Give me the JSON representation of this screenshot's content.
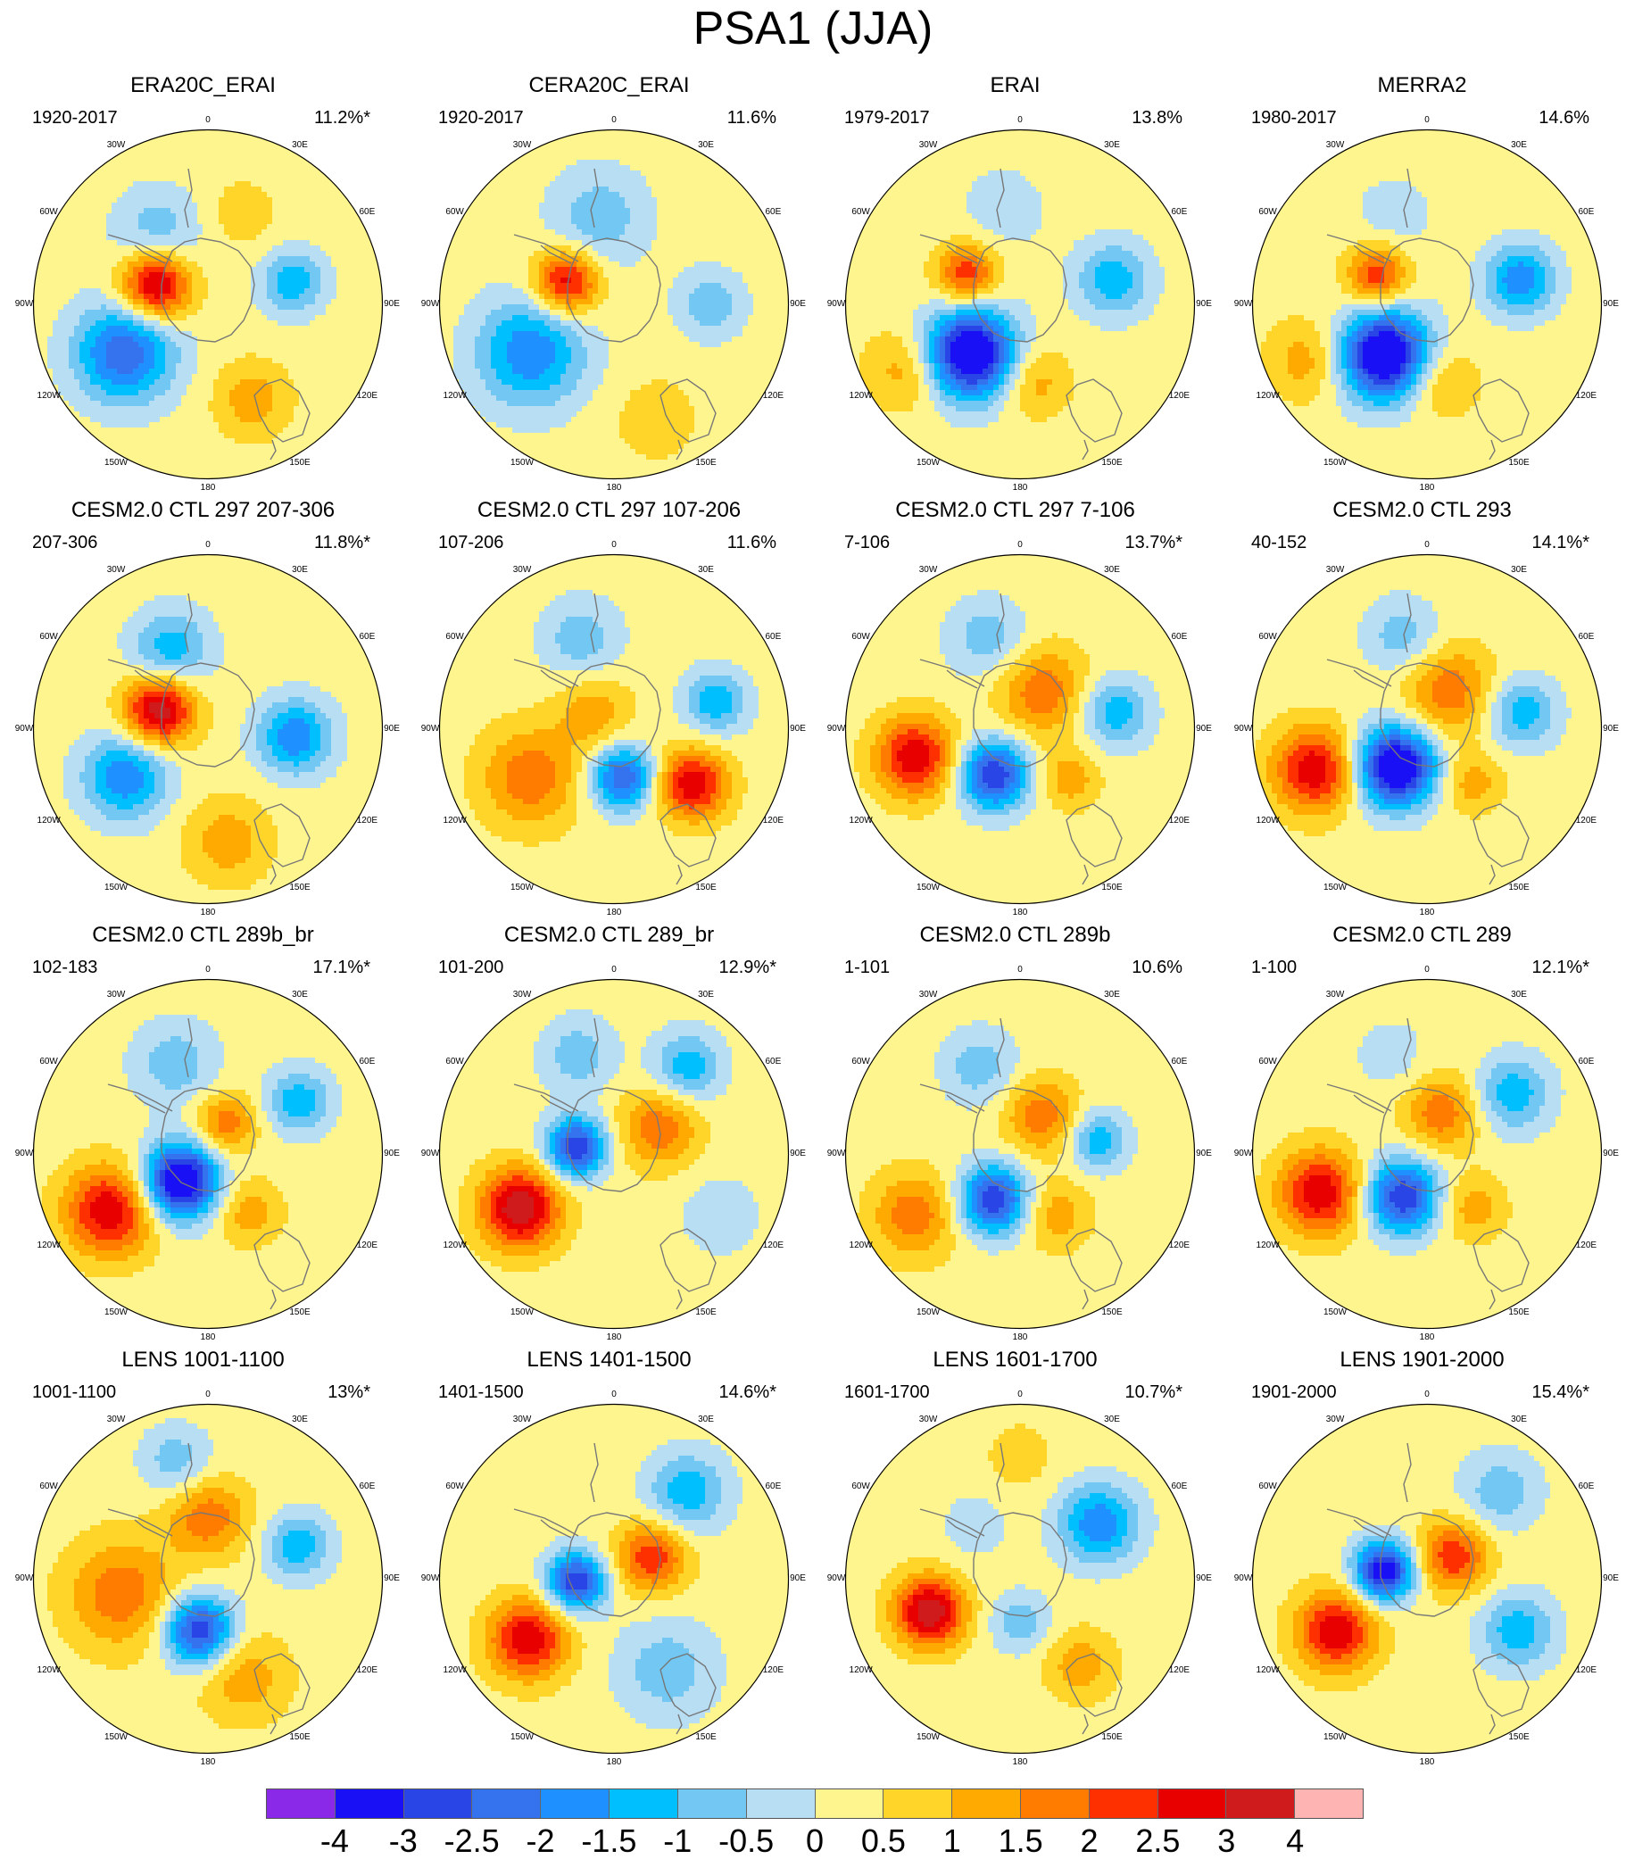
{
  "title": "PSA1 (JJA)",
  "chart_data": {
    "type": "heatmap",
    "projection": "south-polar-stereographic",
    "layout": "4x4 grid",
    "longitude_labels": [
      "0",
      "30E",
      "60E",
      "90E",
      "120E",
      "150E",
      "180",
      "150W",
      "120W",
      "90W",
      "60W",
      "30W"
    ],
    "panels": [
      {
        "title": "ERA20C_ERAI",
        "period": "1920-2017",
        "variance": "11.2%*",
        "features": [
          {
            "lon": -70,
            "r": 0.32,
            "value": 3.0,
            "spread": 0.14
          },
          {
            "lon": -120,
            "r": 0.55,
            "value": -2.5,
            "spread": 0.2
          },
          {
            "lon": -35,
            "r": 0.5,
            "value": -1.0,
            "spread": 0.18
          },
          {
            "lon": 75,
            "r": 0.5,
            "value": -1.5,
            "spread": 0.13
          },
          {
            "lon": 155,
            "r": 0.6,
            "value": 1.0,
            "spread": 0.15
          },
          {
            "lon": 20,
            "r": 0.55,
            "value": 0.5,
            "spread": 0.15
          }
        ]
      },
      {
        "title": "CERA20C_ERAI",
        "period": "1920-2017",
        "variance": "11.6%",
        "features": [
          {
            "lon": -65,
            "r": 0.3,
            "value": 2.5,
            "spread": 0.13
          },
          {
            "lon": -120,
            "r": 0.55,
            "value": -2.0,
            "spread": 0.22
          },
          {
            "lon": -10,
            "r": 0.5,
            "value": -1.0,
            "spread": 0.2
          },
          {
            "lon": 90,
            "r": 0.55,
            "value": -1.0,
            "spread": 0.14
          },
          {
            "lon": 160,
            "r": 0.7,
            "value": 0.5,
            "spread": 0.18
          }
        ]
      },
      {
        "title": "ERAI",
        "period": "1979-2017",
        "variance": "13.8%",
        "features": [
          {
            "lon": -60,
            "r": 0.35,
            "value": 2.0,
            "spread": 0.12
          },
          {
            "lon": -135,
            "r": 0.4,
            "value": -4.0,
            "spread": 0.18
          },
          {
            "lon": 75,
            "r": 0.55,
            "value": -1.5,
            "spread": 0.15
          },
          {
            "lon": -120,
            "r": 0.75,
            "value": 1.0,
            "spread": 0.16
          },
          {
            "lon": 170,
            "r": 0.45,
            "value": 1.0,
            "spread": 0.14
          },
          {
            "lon": -10,
            "r": 0.55,
            "value": -0.5,
            "spread": 0.18
          }
        ]
      },
      {
        "title": "MERRA2",
        "period": "1980-2017",
        "variance": "14.6%",
        "features": [
          {
            "lon": -60,
            "r": 0.33,
            "value": 2.0,
            "spread": 0.12
          },
          {
            "lon": -140,
            "r": 0.38,
            "value": -4.0,
            "spread": 0.18
          },
          {
            "lon": 75,
            "r": 0.55,
            "value": -2.0,
            "spread": 0.14
          },
          {
            "lon": -115,
            "r": 0.75,
            "value": 1.0,
            "spread": 0.16
          },
          {
            "lon": 170,
            "r": 0.45,
            "value": 1.0,
            "spread": 0.14
          },
          {
            "lon": -20,
            "r": 0.55,
            "value": -0.5,
            "spread": 0.16
          }
        ]
      },
      {
        "title": "CESM2.0 CTL 297 207-306",
        "period": "207-306",
        "variance": "11.8%*",
        "features": [
          {
            "lon": -68,
            "r": 0.3,
            "value": 3.0,
            "spread": 0.14
          },
          {
            "lon": -120,
            "r": 0.55,
            "value": -2.0,
            "spread": 0.17
          },
          {
            "lon": -25,
            "r": 0.5,
            "value": -1.5,
            "spread": 0.16
          },
          {
            "lon": 95,
            "r": 0.5,
            "value": -2.0,
            "spread": 0.15
          },
          {
            "lon": 170,
            "r": 0.65,
            "value": 1.0,
            "spread": 0.17
          }
        ]
      },
      {
        "title": "CESM2.0 CTL 297 107-206",
        "period": "107-206",
        "variance": "11.6%",
        "features": [
          {
            "lon": 170,
            "r": 0.28,
            "value": -2.5,
            "spread": 0.13
          },
          {
            "lon": 125,
            "r": 0.55,
            "value": 2.5,
            "spread": 0.14
          },
          {
            "lon": -120,
            "r": 0.55,
            "value": 1.5,
            "spread": 0.2
          },
          {
            "lon": -20,
            "r": 0.55,
            "value": -1.0,
            "spread": 0.16
          },
          {
            "lon": 75,
            "r": 0.6,
            "value": -1.5,
            "spread": 0.13
          },
          {
            "lon": -50,
            "r": 0.15,
            "value": 1.0,
            "spread": 0.15
          }
        ]
      },
      {
        "title": "CESM2.0 CTL 297 7-106",
        "period": "7-106",
        "variance": "13.7%*",
        "features": [
          {
            "lon": -150,
            "r": 0.3,
            "value": -3.0,
            "spread": 0.14
          },
          {
            "lon": -105,
            "r": 0.62,
            "value": 2.5,
            "spread": 0.16
          },
          {
            "lon": 30,
            "r": 0.25,
            "value": 1.5,
            "spread": 0.18
          },
          {
            "lon": 80,
            "r": 0.55,
            "value": -1.5,
            "spread": 0.14
          },
          {
            "lon": -20,
            "r": 0.55,
            "value": -1.0,
            "spread": 0.16
          },
          {
            "lon": 135,
            "r": 0.4,
            "value": 1.0,
            "spread": 0.12
          }
        ]
      },
      {
        "title": "CESM2.0 CTL 293",
        "period": "40-152",
        "variance": "14.1%*",
        "features": [
          {
            "lon": -140,
            "r": 0.28,
            "value": -4.0,
            "spread": 0.16
          },
          {
            "lon": -110,
            "r": 0.68,
            "value": 2.5,
            "spread": 0.17
          },
          {
            "lon": 30,
            "r": 0.25,
            "value": 1.5,
            "spread": 0.18
          },
          {
            "lon": 80,
            "r": 0.55,
            "value": -1.5,
            "spread": 0.14
          },
          {
            "lon": -15,
            "r": 0.55,
            "value": -1.0,
            "spread": 0.15
          },
          {
            "lon": 140,
            "r": 0.4,
            "value": 1.0,
            "spread": 0.12
          }
        ]
      },
      {
        "title": "CESM2.0 CTL 289b_br",
        "period": "102-183",
        "variance": "17.1%*",
        "features": [
          {
            "lon": -135,
            "r": 0.22,
            "value": -4.0,
            "spread": 0.15
          },
          {
            "lon": -120,
            "r": 0.65,
            "value": 2.5,
            "spread": 0.18
          },
          {
            "lon": -20,
            "r": 0.55,
            "value": -1.0,
            "spread": 0.17
          },
          {
            "lon": 60,
            "r": 0.6,
            "value": -1.5,
            "spread": 0.13
          },
          {
            "lon": 30,
            "r": 0.2,
            "value": 1.5,
            "spread": 0.12
          },
          {
            "lon": 145,
            "r": 0.4,
            "value": 1.0,
            "spread": 0.13
          }
        ]
      },
      {
        "title": "CESM2.0 CTL 289_br",
        "period": "101-200",
        "variance": "12.9%*",
        "features": [
          {
            "lon": -80,
            "r": 0.22,
            "value": -3.0,
            "spread": 0.12
          },
          {
            "lon": -120,
            "r": 0.62,
            "value": 3.0,
            "spread": 0.16
          },
          {
            "lon": 60,
            "r": 0.3,
            "value": 1.5,
            "spread": 0.16
          },
          {
            "lon": 40,
            "r": 0.65,
            "value": -1.5,
            "spread": 0.14
          },
          {
            "lon": -20,
            "r": 0.6,
            "value": -1.0,
            "spread": 0.15
          },
          {
            "lon": 120,
            "r": 0.7,
            "value": -0.5,
            "spread": 0.18
          }
        ]
      },
      {
        "title": "CESM2.0 CTL 289b",
        "period": "1-101",
        "variance": "10.6%",
        "features": [
          {
            "lon": -150,
            "r": 0.3,
            "value": -3.0,
            "spread": 0.14
          },
          {
            "lon": -120,
            "r": 0.7,
            "value": 1.5,
            "spread": 0.17
          },
          {
            "lon": -25,
            "r": 0.55,
            "value": -1.0,
            "spread": 0.15
          },
          {
            "lon": 80,
            "r": 0.45,
            "value": -1.5,
            "spread": 0.12
          },
          {
            "lon": 30,
            "r": 0.25,
            "value": 1.5,
            "spread": 0.15
          },
          {
            "lon": 150,
            "r": 0.4,
            "value": 1.0,
            "spread": 0.14
          }
        ]
      },
      {
        "title": "CESM2.0 CTL 289",
        "period": "1-100",
        "variance": "12.1%*",
        "features": [
          {
            "lon": -150,
            "r": 0.28,
            "value": -3.0,
            "spread": 0.15
          },
          {
            "lon": -110,
            "r": 0.65,
            "value": 2.5,
            "spread": 0.17
          },
          {
            "lon": 55,
            "r": 0.6,
            "value": -1.5,
            "spread": 0.15
          },
          {
            "lon": 20,
            "r": 0.25,
            "value": 1.5,
            "spread": 0.15
          },
          {
            "lon": 140,
            "r": 0.4,
            "value": 1.0,
            "spread": 0.13
          },
          {
            "lon": -20,
            "r": 0.6,
            "value": -0.5,
            "spread": 0.15
          }
        ]
      },
      {
        "title": "LENS 1001-1100",
        "period": "1001-1100",
        "variance": "13%*",
        "features": [
          {
            "lon": -170,
            "r": 0.3,
            "value": -3.0,
            "spread": 0.14
          },
          {
            "lon": -100,
            "r": 0.5,
            "value": 1.5,
            "spread": 0.22
          },
          {
            "lon": 0,
            "r": 0.35,
            "value": 1.5,
            "spread": 0.16
          },
          {
            "lon": 70,
            "r": 0.55,
            "value": -1.5,
            "spread": 0.13
          },
          {
            "lon": -15,
            "r": 0.7,
            "value": -1.0,
            "spread": 0.14
          },
          {
            "lon": 160,
            "r": 0.6,
            "value": 1.0,
            "spread": 0.18
          }
        ]
      },
      {
        "title": "LENS 1401-1500",
        "period": "1401-1500",
        "variance": "14.6%*",
        "features": [
          {
            "lon": -95,
            "r": 0.22,
            "value": -3.0,
            "spread": 0.12
          },
          {
            "lon": -125,
            "r": 0.6,
            "value": 2.5,
            "spread": 0.16
          },
          {
            "lon": 60,
            "r": 0.25,
            "value": 2.0,
            "spread": 0.14
          },
          {
            "lon": 40,
            "r": 0.65,
            "value": -1.5,
            "spread": 0.16
          },
          {
            "lon": 150,
            "r": 0.6,
            "value": -1.0,
            "spread": 0.2
          }
        ]
      },
      {
        "title": "LENS 1601-1700",
        "period": "1601-1700",
        "variance": "10.7%*",
        "features": [
          {
            "lon": -110,
            "r": 0.55,
            "value": 3.0,
            "spread": 0.14
          },
          {
            "lon": 55,
            "r": 0.55,
            "value": -2.0,
            "spread": 0.16
          },
          {
            "lon": 180,
            "r": 0.25,
            "value": -1.0,
            "spread": 0.12
          },
          {
            "lon": 0,
            "r": 0.7,
            "value": 0.5,
            "spread": 0.14
          },
          {
            "lon": 145,
            "r": 0.6,
            "value": 1.0,
            "spread": 0.14
          },
          {
            "lon": -40,
            "r": 0.4,
            "value": -0.5,
            "spread": 0.14
          }
        ]
      },
      {
        "title": "LENS 1901-2000",
        "period": "1901-2000",
        "variance": "15.4%*",
        "features": [
          {
            "lon": -80,
            "r": 0.25,
            "value": -3.5,
            "spread": 0.12
          },
          {
            "lon": -120,
            "r": 0.6,
            "value": 2.5,
            "spread": 0.16
          },
          {
            "lon": 50,
            "r": 0.2,
            "value": 2.0,
            "spread": 0.14
          },
          {
            "lon": 120,
            "r": 0.6,
            "value": -1.5,
            "spread": 0.15
          },
          {
            "lon": 40,
            "r": 0.65,
            "value": -1.0,
            "spread": 0.16
          }
        ]
      }
    ],
    "colorbar": {
      "labels": [
        "-4",
        "-3",
        "-2.5",
        "-2",
        "-1.5",
        "-1",
        "-0.5",
        "0",
        "0.5",
        "1",
        "1.5",
        "2",
        "2.5",
        "3",
        "4"
      ],
      "levels": [
        -4,
        -3,
        -2.5,
        -2,
        -1.5,
        -1,
        -0.5,
        0,
        0.5,
        1,
        1.5,
        2,
        2.5,
        3,
        4
      ],
      "colors": [
        "#8a2ae8",
        "#1a10f5",
        "#2a45e6",
        "#3572ee",
        "#1e90ff",
        "#00bfff",
        "#72c8f2",
        "#b8def4",
        "#fff58f",
        "#ffd52a",
        "#ffaa00",
        "#ff7c00",
        "#ff3000",
        "#e80000",
        "#cf1b1b",
        "#ffb4b4"
      ]
    }
  }
}
